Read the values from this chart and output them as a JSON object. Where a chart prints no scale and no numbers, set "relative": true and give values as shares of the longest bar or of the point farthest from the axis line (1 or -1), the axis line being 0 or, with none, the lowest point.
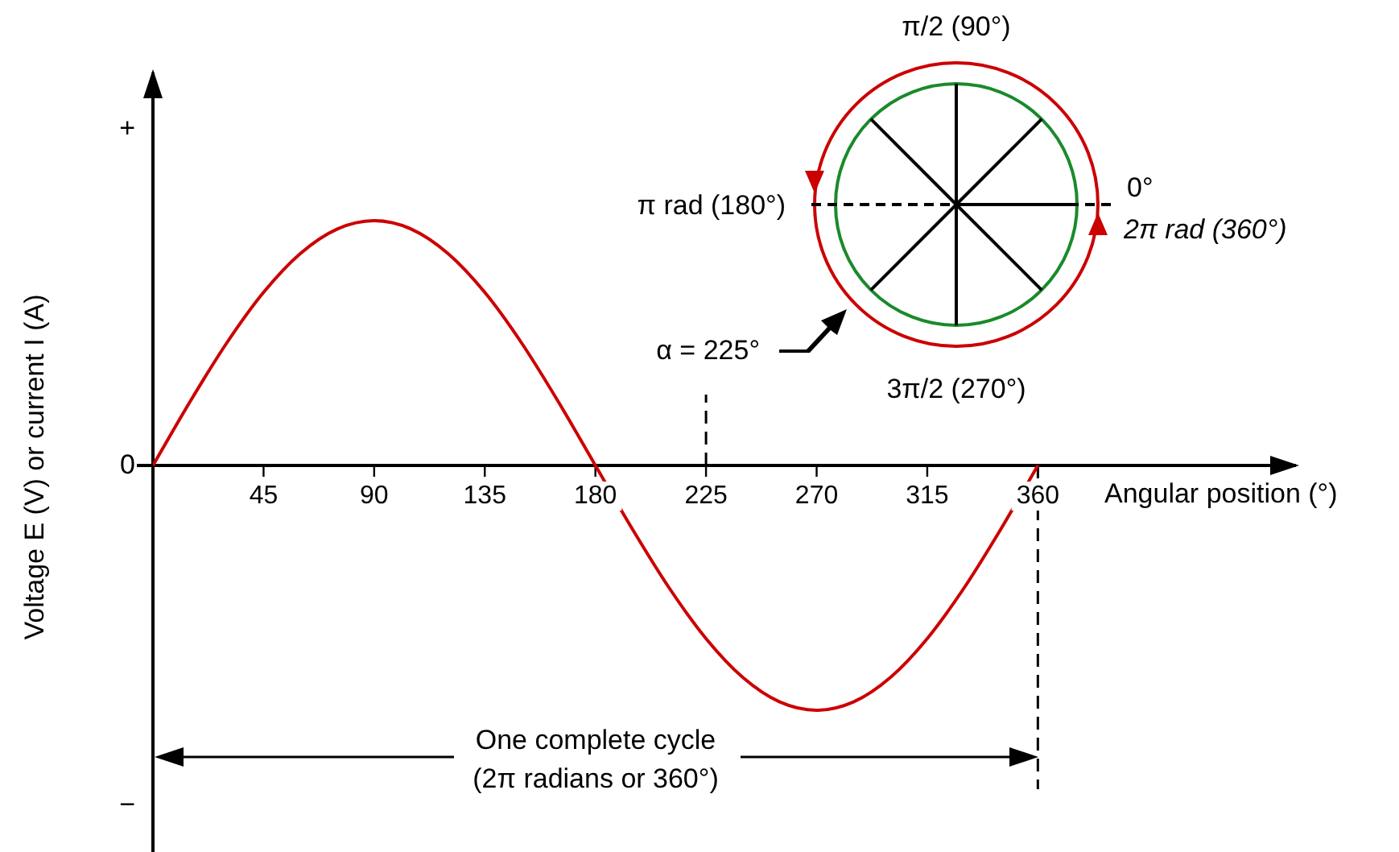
{
  "chart_data": {
    "type": "line",
    "xlabel": "Angular position (°)",
    "ylabel": "Voltage E (V) or current I (A)",
    "relative": true,
    "marker": "none",
    "line_style": "solid",
    "legend": false,
    "x": [
      0,
      15,
      30,
      45,
      60,
      75,
      90,
      105,
      120,
      135,
      150,
      165,
      180,
      195,
      210,
      225,
      240,
      255,
      270,
      285,
      300,
      315,
      330,
      345,
      360
    ],
    "series": [
      {
        "color": "#cc0000",
        "values": [
          0,
          0.259,
          0.5,
          0.707,
          0.866,
          0.966,
          1,
          0.966,
          0.866,
          0.707,
          0.5,
          0.259,
          0,
          -0.259,
          -0.5,
          -0.707,
          -0.866,
          -0.966,
          -1,
          -0.966,
          -0.866,
          -0.707,
          -0.5,
          -0.259,
          0
        ]
      }
    ],
    "xlim": [
      0,
      465
    ],
    "xticks": [
      45,
      90,
      135,
      180,
      225,
      270,
      315,
      360
    ],
    "ref_lines": [
      {
        "axis": "x",
        "value": 225,
        "line_style": "dashed",
        "color": "#000000"
      },
      {
        "axis": "x",
        "value": 360,
        "line_style": "dashed",
        "color": "#000000"
      }
    ],
    "annotations": [
      "+",
      {
        "text": "0",
        "x": 0,
        "y": 0
      },
      "−",
      "π/2 (90°)",
      "π rad (180°)",
      "0°",
      "2π rad (360°)",
      "3π/2 (270°)",
      "α = 225°",
      "One complete cycle",
      "(2π radians or 360°)"
    ]
  }
}
